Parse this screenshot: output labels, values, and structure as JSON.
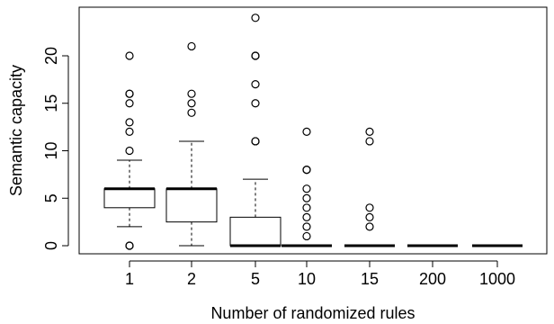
{
  "chart_data": {
    "type": "box",
    "title": "",
    "xlabel": "Number of randomized rules",
    "ylabel": "Semantic capacity",
    "ylim": [
      0,
      24
    ],
    "yticks": [
      0,
      5,
      10,
      15,
      20
    ],
    "categories": [
      "1",
      "2",
      "5",
      "10",
      "15",
      "200",
      "1000"
    ],
    "boxes": [
      {
        "category": "1",
        "whisker_low": 2,
        "q1": 4,
        "median": 6,
        "q3": 6,
        "whisker_high": 9,
        "outliers": [
          0,
          0,
          10,
          12,
          13,
          15,
          16,
          16,
          20
        ]
      },
      {
        "category": "2",
        "whisker_low": 0,
        "q1": 2.5,
        "median": 6,
        "q3": 6,
        "whisker_high": 11,
        "outliers": [
          14,
          15,
          16,
          21
        ]
      },
      {
        "category": "5",
        "whisker_low": 0,
        "q1": 0,
        "median": 0,
        "q3": 3,
        "whisker_high": 7,
        "outliers": [
          11,
          11,
          15,
          17,
          20,
          20,
          24
        ]
      },
      {
        "category": "10",
        "whisker_low": 0,
        "q1": 0,
        "median": 0,
        "q3": 0,
        "whisker_high": 0,
        "outliers": [
          1,
          2,
          3,
          4,
          5,
          6,
          8,
          8,
          12
        ]
      },
      {
        "category": "15",
        "whisker_low": 0,
        "q1": 0,
        "median": 0,
        "q3": 0,
        "whisker_high": 0,
        "outliers": [
          2,
          3,
          4,
          11,
          12
        ]
      },
      {
        "category": "200",
        "whisker_low": 0,
        "q1": 0,
        "median": 0,
        "q3": 0,
        "whisker_high": 0,
        "outliers": []
      },
      {
        "category": "1000",
        "whisker_low": 0,
        "q1": 0,
        "median": 0,
        "q3": 0,
        "whisker_high": 0,
        "outliers": []
      }
    ],
    "grid": false,
    "legend": "none"
  }
}
